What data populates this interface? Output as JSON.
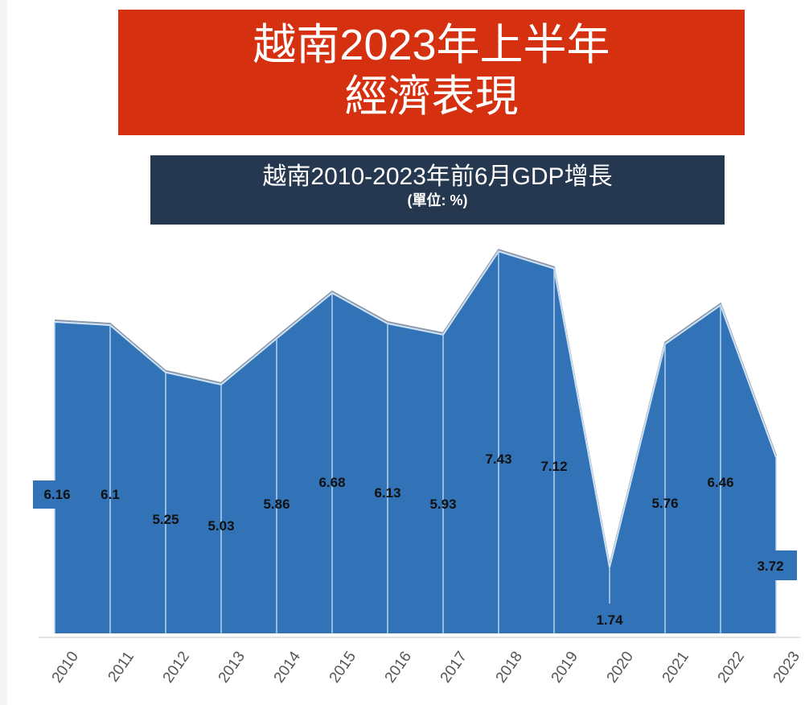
{
  "header": {
    "title_line1": "越南2023年上半年",
    "title_line2": "經濟表現",
    "subtitle": "越南2010-2023年前6月GDP增長",
    "unit": "(單位: %)"
  },
  "colors": {
    "title_bg": "#d5300f",
    "subtitle_bg": "#263750",
    "area": "#3173b6"
  },
  "chart_data": {
    "type": "area",
    "title": "越南2010-2023年前6月GDP增長",
    "ylabel": "(單位: %)",
    "categories": [
      "2010",
      "2011",
      "2012",
      "2013",
      "2014",
      "2015",
      "2016",
      "2017",
      "2018",
      "2019",
      "2020",
      "2021",
      "2022",
      "2023"
    ],
    "values": [
      6.16,
      6.1,
      5.25,
      5.03,
      5.86,
      6.68,
      6.13,
      5.93,
      7.43,
      7.12,
      1.74,
      5.76,
      6.46,
      3.72
    ],
    "labels": [
      "6.16",
      "6.1",
      "5.25",
      "5.03",
      "5.86",
      "6.68",
      "6.13",
      "5.93",
      "7.43",
      "7.12",
      "1.74",
      "5.76",
      "6.46",
      "3.72"
    ],
    "grid": false
  }
}
